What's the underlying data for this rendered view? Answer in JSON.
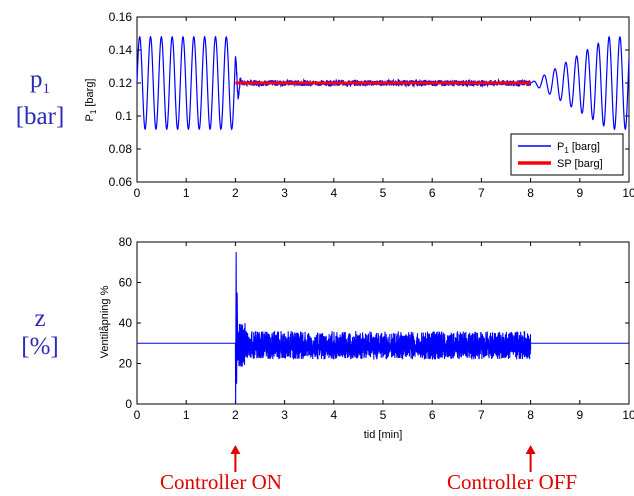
{
  "left_labels": {
    "top_symbol": "p",
    "top_subscript": "1",
    "top_unit": "[bar]",
    "bottom_symbol": "z",
    "bottom_unit": "[%]"
  },
  "annotations": {
    "on_label": "Controller ON",
    "off_label": "Controller OFF",
    "on_time": 2,
    "off_time": 8
  },
  "colors": {
    "p1": "#0000ff",
    "sp": "#ff0000",
    "annotation": "#e00000",
    "side_label": "#2b2bb8"
  },
  "chart_data": [
    {
      "type": "line",
      "ylabel": "P",
      "ylabel_subscript": "1",
      "ylabel_unit": "[barg]",
      "xlim": [
        0,
        10
      ],
      "ylim": [
        0.06,
        0.16
      ],
      "x_ticks": [
        "0",
        "1",
        "2",
        "3",
        "4",
        "5",
        "6",
        "7",
        "8",
        "9",
        "10"
      ],
      "y_ticks": [
        "0.06",
        "0.08",
        "0.1",
        "0.12",
        "0.14",
        "0.16"
      ],
      "legend": {
        "position": "bottom-right",
        "entries": [
          "P",
          "SP [barg]"
        ],
        "entry1_subscript": "1",
        "entry1_unit": "[barg]"
      },
      "series": [
        {
          "name": "P1 [barg]",
          "description": "oscillation 0.092-0.148, period ~0.22 min for t<2; ~0.12 with small noise 2-8; growing oscillation after 8 up to amplitude ~0.028",
          "oscillation_center": 0.12,
          "oscillation_amplitude": 0.028,
          "oscillation_period": 0.22
        },
        {
          "name": "SP [barg]",
          "x": [
            2,
            8
          ],
          "y": [
            0.12,
            0.12
          ]
        }
      ]
    },
    {
      "type": "line",
      "ylabel": "Ventilåpning %",
      "xlabel": "tid [min]",
      "xlim": [
        0,
        10
      ],
      "ylim": [
        0,
        80
      ],
      "x_ticks": [
        "0",
        "1",
        "2",
        "3",
        "4",
        "5",
        "6",
        "7",
        "8",
        "9",
        "10"
      ],
      "y_ticks": [
        "0",
        "20",
        "40",
        "60",
        "80"
      ],
      "series": [
        {
          "name": "z",
          "baseline": 30,
          "spike_max": 75,
          "spike_min": 0,
          "active_range": [
            2,
            8
          ],
          "active_band": [
            22,
            36
          ]
        }
      ]
    }
  ]
}
